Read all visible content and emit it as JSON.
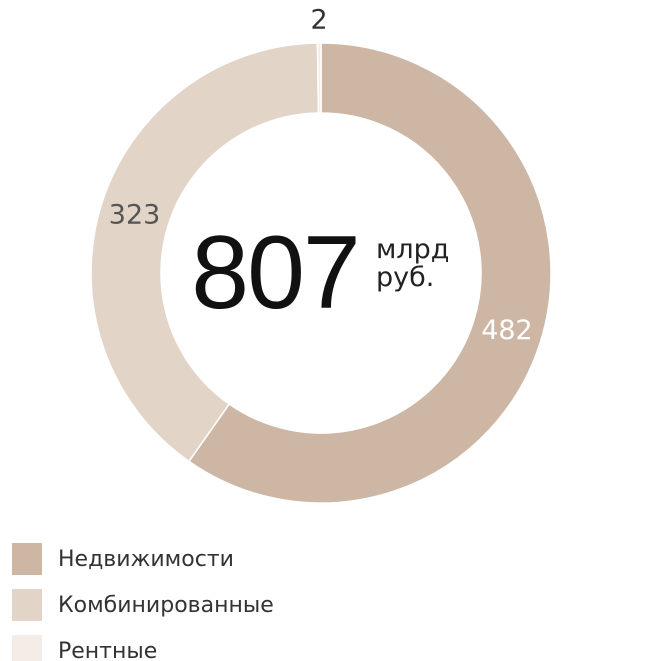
{
  "chart_data": {
    "type": "donut",
    "categories": [
      "Недвижимости",
      "Комбинированные",
      "Рентные"
    ],
    "values": [
      482,
      323,
      2
    ],
    "colors": [
      "#cdb6a4",
      "#e3d4c8",
      "#f4ede7"
    ],
    "center_value": 807,
    "center_unit": "млрд руб."
  }
}
